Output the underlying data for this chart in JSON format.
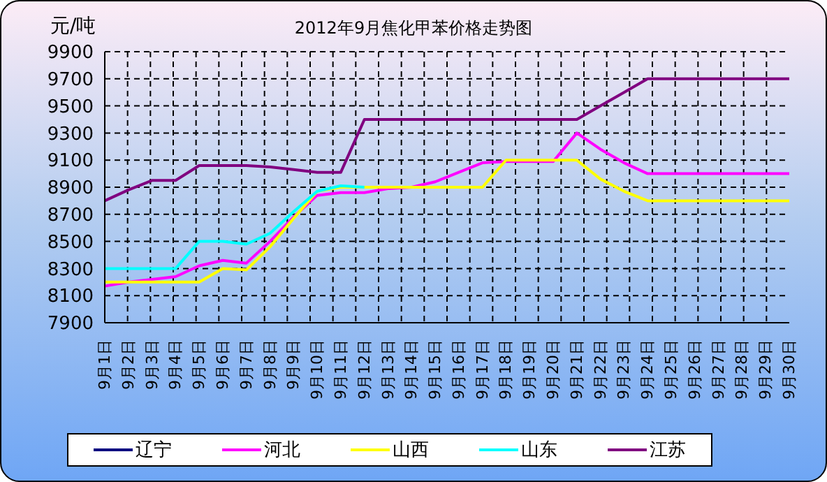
{
  "chart_data": {
    "type": "line",
    "title": "2012年9月焦化甲苯价格走势图",
    "ylabel": "元/吨",
    "categories": [
      "9月1日",
      "9月2日",
      "9月3日",
      "9月4日",
      "9月5日",
      "9月6日",
      "9月7日",
      "9月8日",
      "9月9日",
      "9月10日",
      "9月11日",
      "9月12日",
      "9月13日",
      "9月14日",
      "9月15日",
      "9月16日",
      "9月17日",
      "9月18日",
      "9月19日",
      "9月20日",
      "9月21日",
      "9月22日",
      "9月23日",
      "9月24日",
      "9月25日",
      "9月26日",
      "9月27日",
      "9月28日",
      "9月29日",
      "9月30日"
    ],
    "series": [
      {
        "name": "辽宁",
        "color": "#000080",
        "values": [
          null,
          null,
          null,
          null,
          null,
          null,
          null,
          null,
          null,
          null,
          null,
          null,
          null,
          null,
          null,
          null,
          null,
          null,
          null,
          null,
          null,
          null,
          null,
          null,
          null,
          null,
          null,
          null,
          null,
          null
        ]
      },
      {
        "name": "河北",
        "color": "#ff00ff",
        "values": [
          8170,
          8200,
          8220,
          8240,
          8320,
          8360,
          8340,
          8500,
          8680,
          8840,
          8860,
          8860,
          8890,
          8900,
          8940,
          9010,
          9080,
          9090,
          9090,
          9090,
          9300,
          9180,
          9080,
          9000,
          9000,
          9000,
          9000,
          9000,
          9000,
          9000
        ]
      },
      {
        "name": "山西",
        "color": "#ffff00",
        "values": [
          8200,
          8200,
          8200,
          8200,
          8200,
          8300,
          8290,
          8460,
          8670,
          8870,
          8900,
          8900,
          8900,
          8900,
          8900,
          8900,
          8900,
          9100,
          9100,
          9100,
          9100,
          8960,
          8870,
          8800,
          8800,
          8800,
          8800,
          8800,
          8800,
          8800
        ]
      },
      {
        "name": "山东",
        "color": "#00ffff",
        "values": [
          8300,
          8300,
          8300,
          8300,
          8500,
          8500,
          8480,
          8560,
          8720,
          8870,
          8910,
          8900,
          null,
          null,
          null,
          null,
          null,
          null,
          null,
          null,
          null,
          null,
          null,
          null,
          null,
          null,
          null,
          null,
          null,
          null
        ]
      },
      {
        "name": "江苏",
        "color": "#800080",
        "values": [
          8800,
          8880,
          8950,
          8950,
          9060,
          9060,
          9060,
          9050,
          9030,
          9010,
          9010,
          9400,
          9400,
          9400,
          9400,
          9400,
          9400,
          9400,
          9400,
          9400,
          9400,
          9500,
          9600,
          9700,
          9700,
          9700,
          9700,
          9700,
          9700,
          9700
        ]
      }
    ],
    "ylim": [
      7900,
      9900
    ],
    "yticks": [
      7900,
      8100,
      8300,
      8500,
      8700,
      8900,
      9100,
      9300,
      9500,
      9700,
      9900
    ],
    "grid": true,
    "legend": "bottom",
    "marker": "none",
    "line_style": "solid"
  }
}
